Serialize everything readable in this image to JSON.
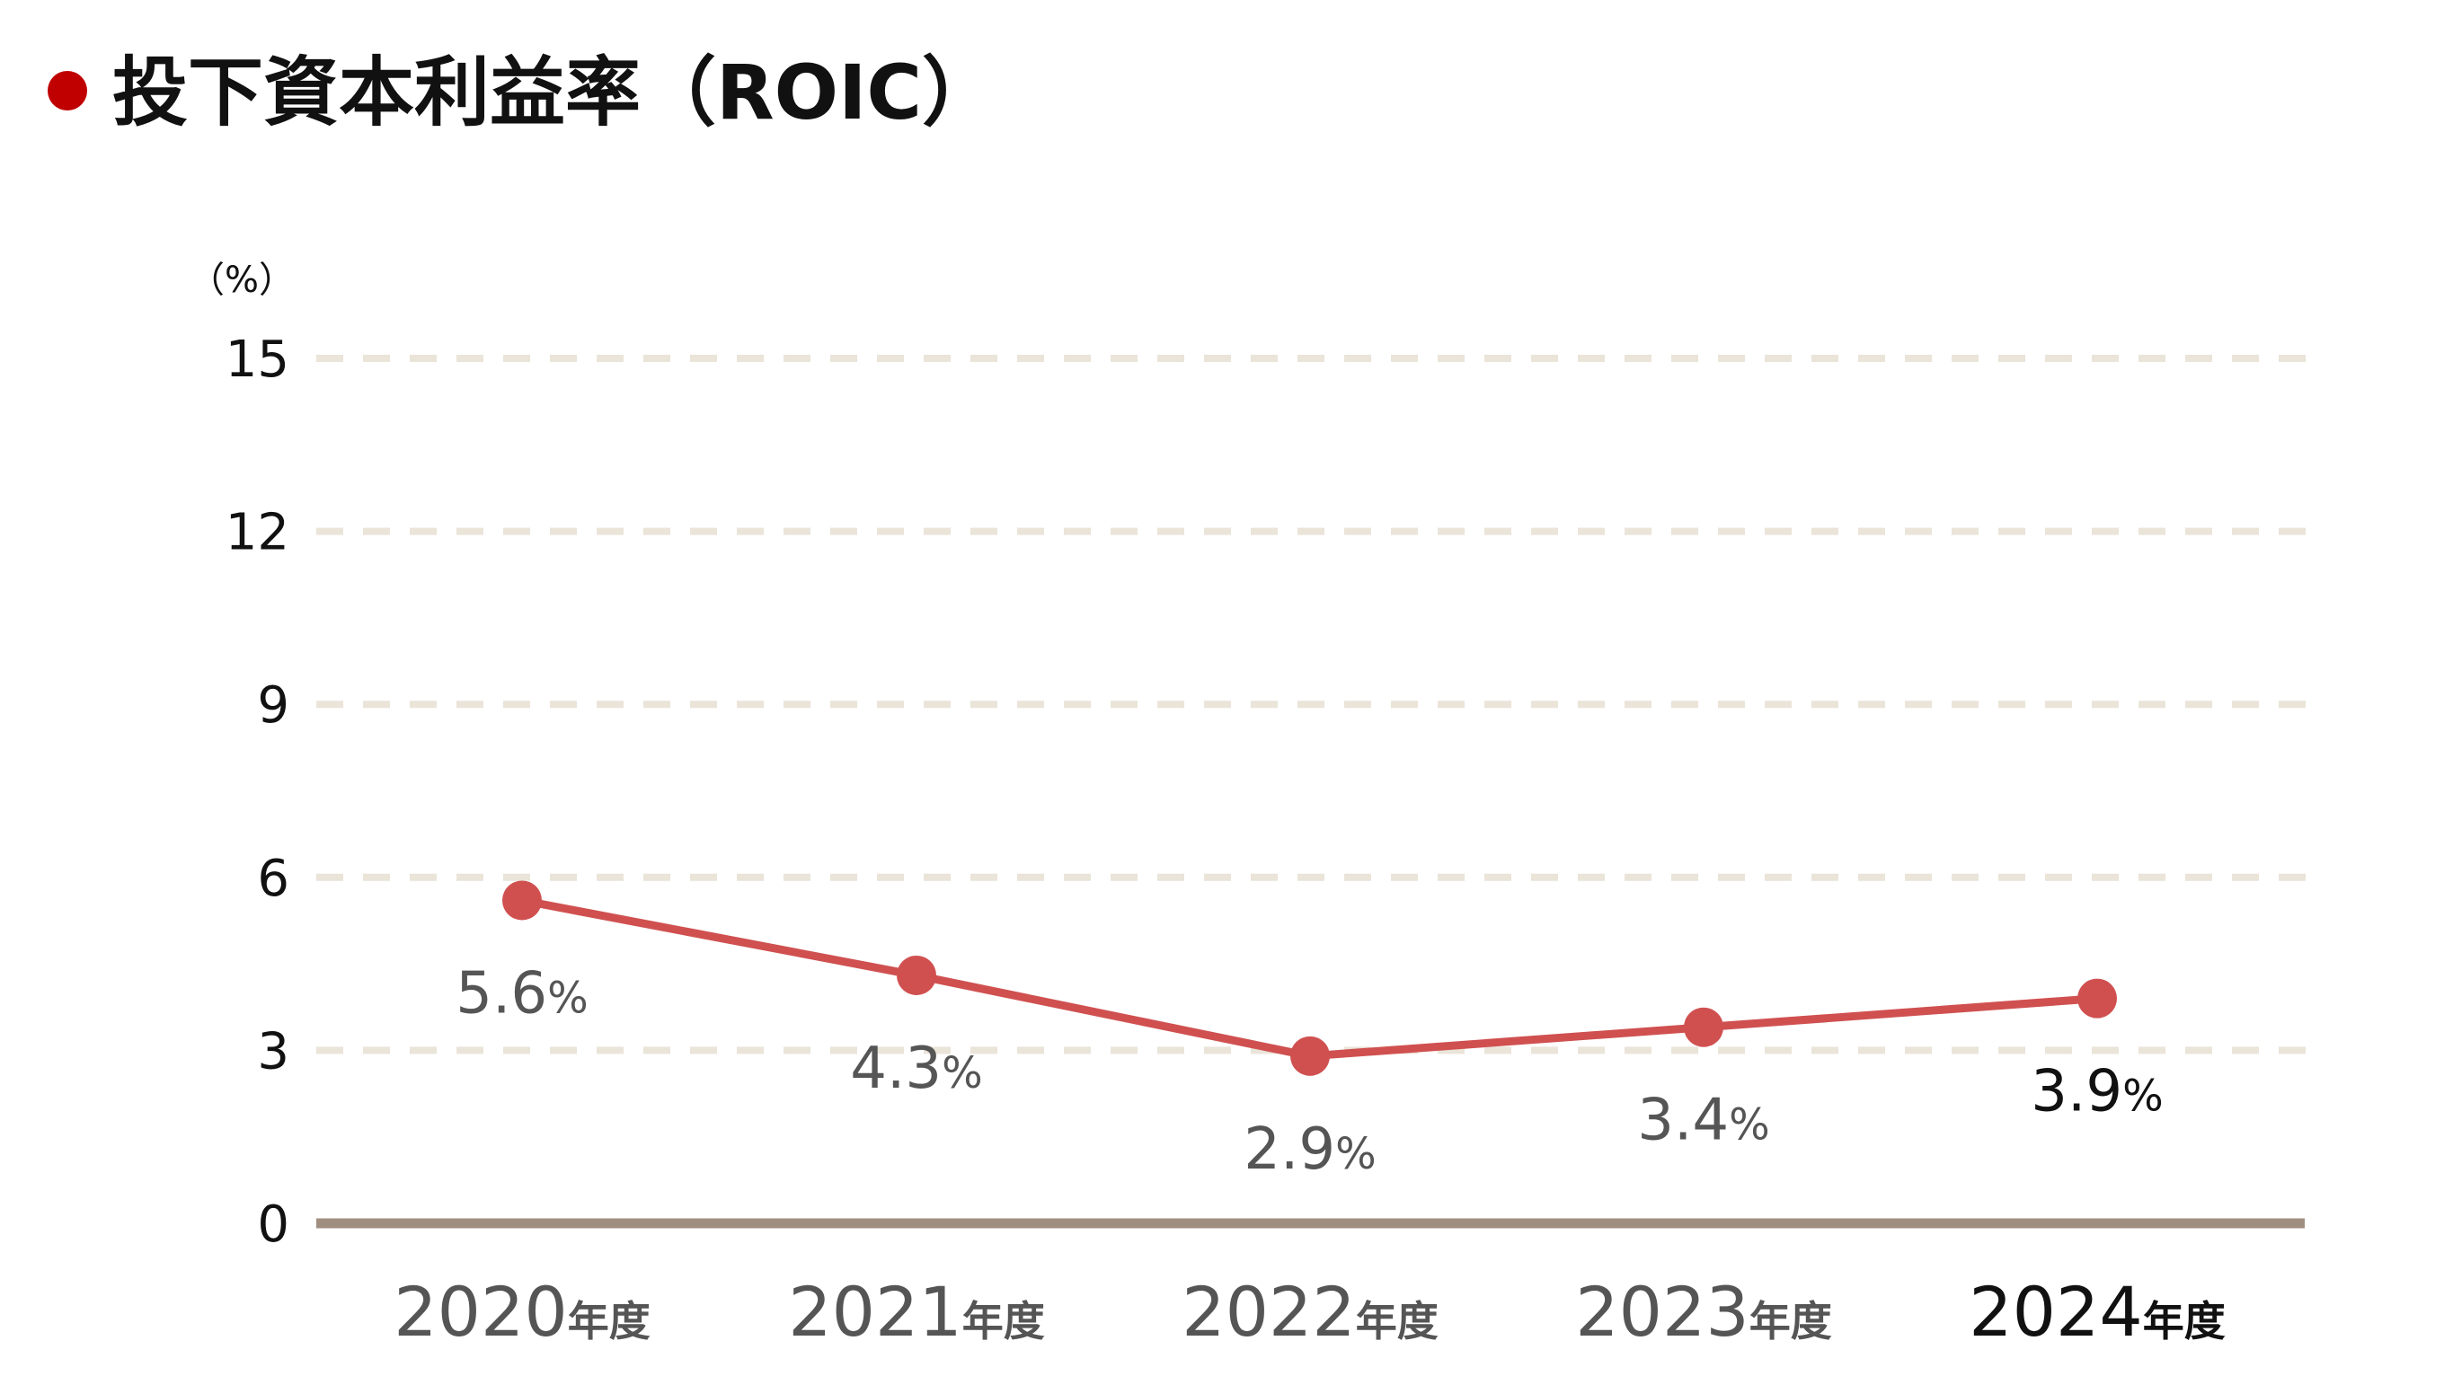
{
  "chart_data": {
    "type": "line",
    "title": "投下資本利益率（ROIC）",
    "ylabel": "（%）",
    "ylim": [
      0,
      15
    ],
    "yticks": [
      "0",
      "3",
      "6",
      "9",
      "12",
      "15"
    ],
    "grid": true,
    "categories": [
      {
        "year": "2020",
        "suffix": "年度"
      },
      {
        "year": "2021",
        "suffix": "年度"
      },
      {
        "year": "2022",
        "suffix": "年度"
      },
      {
        "year": "2023",
        "suffix": "年度"
      },
      {
        "year": "2024",
        "suffix": "年度"
      }
    ],
    "values": [
      5.6,
      4.3,
      2.9,
      3.4,
      3.9
    ],
    "data_labels": [
      {
        "num": "5.6",
        "unit": "%"
      },
      {
        "num": "4.3",
        "unit": "%"
      },
      {
        "num": "2.9",
        "unit": "%"
      },
      {
        "num": "3.4",
        "unit": "%"
      },
      {
        "num": "3.9",
        "unit": "%"
      }
    ],
    "highlight_index": 4
  },
  "colors": {
    "bullet": "#C00000",
    "line": "#D05050",
    "grid": "#EAE4D9",
    "baseline": "#A08E80",
    "muted_text": "#555555",
    "highlight_text": "#111111"
  }
}
